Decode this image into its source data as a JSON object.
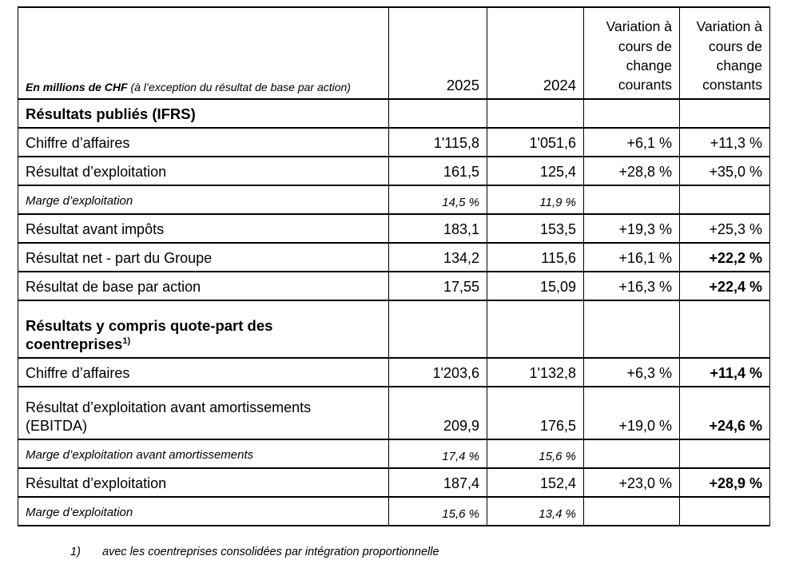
{
  "table": {
    "header": {
      "unit_bold": "En millions de CHF",
      "unit_note": " (à l’exception du résultat de base par action)",
      "col_2025": "2025",
      "col_2024": "2024",
      "col_var_courants": "Variation à\ncours de\nchange\ncourants",
      "col_var_constants": "Variation à\ncours de\nchange\nconstants"
    },
    "rows": [
      {
        "kind": "section",
        "label": "Résultats publiés (IFRS)",
        "y2025": "",
        "y2024": "",
        "courants": "",
        "constants": ""
      },
      {
        "kind": "data",
        "label": "Chiffre d’affaires",
        "y2025": "1'115,8",
        "y2024": "1'051,6",
        "courants": "+6,1 %",
        "constants": "+11,3 %"
      },
      {
        "kind": "data",
        "label": "Résultat d’exploitation",
        "y2025": "161,5",
        "y2024": "125,4",
        "courants": "+28,8 %",
        "constants": "+35,0 %"
      },
      {
        "kind": "margin",
        "label": "Marge d’exploitation",
        "y2025": "14,5 %",
        "y2024": "11,9 %",
        "courants": "",
        "constants": ""
      },
      {
        "kind": "data",
        "label": "Résultat avant impôts",
        "y2025": "183,1",
        "y2024": "153,5",
        "courants": "+19,3 %",
        "constants": "+25,3 %"
      },
      {
        "kind": "data",
        "label": "Résultat net - part du Groupe",
        "y2025": "134,2",
        "y2024": "115,6",
        "courants": "+16,1 %",
        "constants": "+22,2 %",
        "bold": [
          "constants"
        ]
      },
      {
        "kind": "data",
        "label": "Résultat de base par action",
        "y2025": "17,55",
        "y2024": "15,09",
        "courants": "+16,3 %",
        "constants": "+22,4 %",
        "bold": [
          "constants"
        ]
      },
      {
        "kind": "section",
        "tall": true,
        "label": "Résultats y compris quote-part des coentreprises",
        "sup": "1)",
        "y2025": "",
        "y2024": "",
        "courants": "",
        "constants": ""
      },
      {
        "kind": "data",
        "label": "Chiffre d’affaires",
        "y2025": "1'203,6",
        "y2024": "1'132,8",
        "courants": "+6,3 %",
        "constants": "+11,4 %",
        "bold": [
          "constants"
        ]
      },
      {
        "kind": "data",
        "twoline": true,
        "label": "Résultat d’exploitation avant amortissements\n(EBITDA)",
        "y2025": "209,9",
        "y2024": "176,5",
        "courants": "+19,0 %",
        "constants": "+24,6 %",
        "bold": [
          "constants"
        ]
      },
      {
        "kind": "margin",
        "label": "Marge d’exploitation avant amortissements",
        "y2025": "17,4 %",
        "y2024": "15,6 %",
        "courants": "",
        "constants": ""
      },
      {
        "kind": "data",
        "label": "Résultat d’exploitation",
        "y2025": "187,4",
        "y2024": "152,4",
        "courants": "+23,0 %",
        "constants": "+28,9 %",
        "bold": [
          "constants"
        ]
      },
      {
        "kind": "margin",
        "label": "Marge d’exploitation",
        "y2025": "15,6 %",
        "y2024": "13,4 %",
        "courants": "",
        "constants": ""
      }
    ]
  },
  "footnote": {
    "marker": "1)",
    "text": "avec les coentreprises consolidées par intégration proportionnelle"
  }
}
